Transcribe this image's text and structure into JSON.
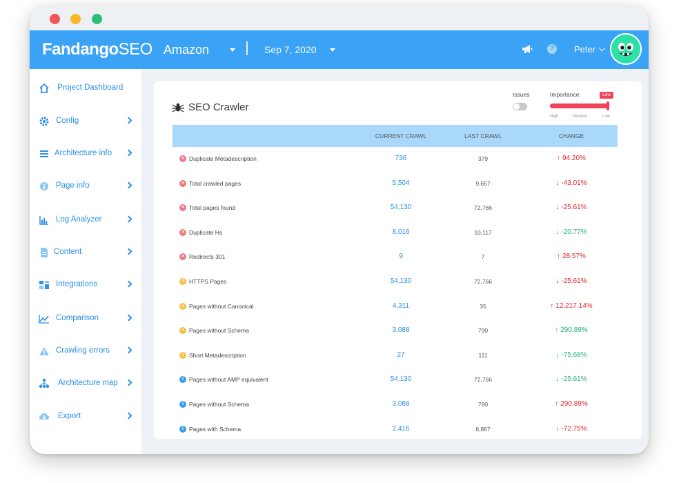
{
  "colors": {
    "accent": "#3aa3f5",
    "link": "#2b8fe8",
    "bad": "#e8232f",
    "good": "#22b573"
  },
  "header": {
    "logo_main": "Fandango",
    "logo_suffix": "SEO",
    "project": "Amazon",
    "date": "Sep 7, 2020",
    "user": "Peter",
    "help_label": "?"
  },
  "sidebar": {
    "items": [
      {
        "label": "Project Dashboard",
        "icon": "home-icon",
        "chevron": false
      },
      {
        "label": "Config",
        "icon": "gear-icon",
        "chevron": true
      },
      {
        "label": "Architecture info",
        "icon": "architecture-icon",
        "chevron": true
      },
      {
        "label": "Page info",
        "icon": "info-icon",
        "chevron": true
      },
      {
        "label": "Log Analyzer",
        "icon": "chart-icon",
        "chevron": true
      },
      {
        "label": "Content",
        "icon": "document-icon",
        "chevron": true
      },
      {
        "label": "Integrations",
        "icon": "grid-icon",
        "chevron": true
      },
      {
        "label": "Comparison",
        "icon": "line-chart-icon",
        "chevron": true
      },
      {
        "label": "Crawling errors",
        "icon": "warning-icon",
        "chevron": true
      },
      {
        "label": "Architecture map",
        "icon": "sitemap-icon",
        "chevron": true
      },
      {
        "label": "Export",
        "icon": "cloud-download-icon",
        "chevron": true
      }
    ]
  },
  "crawler": {
    "title": "SEO Crawler",
    "issues_label": "Issues",
    "issues_on": false,
    "importance_label": "Importance",
    "importance_badge": "Low",
    "importance_level": 1.0,
    "importance_ticks": [
      "High",
      "Medium",
      "Low"
    ],
    "columns": {
      "current": "CURRENT CRAWL",
      "last": "LAST CRAWL",
      "change": "CHANGE"
    },
    "rows": [
      {
        "severity": "error",
        "label": "Duplicate Metadescription",
        "current": "736",
        "last": "379",
        "change": "94.20%",
        "direction": "up",
        "good": false
      },
      {
        "severity": "error",
        "label": "Total crawled pages",
        "current": "5,504",
        "last": "9,657",
        "change": "-43.01%",
        "direction": "down",
        "good": false
      },
      {
        "severity": "error",
        "label": "Total pages found",
        "current": "54,130",
        "last": "72,766",
        "change": "-25.61%",
        "direction": "down",
        "good": false
      },
      {
        "severity": "error",
        "label": "Duplicate Hs",
        "current": "8,016",
        "last": "10,117",
        "change": "-20.77%",
        "direction": "down",
        "good": true
      },
      {
        "severity": "error",
        "label": "Redirects 301",
        "current": "9",
        "last": "7",
        "change": "28.57%",
        "direction": "up",
        "good": false
      },
      {
        "severity": "warning",
        "label": "HTTPS Pages",
        "current": "54,130",
        "last": "72,766",
        "change": "-25.61%",
        "direction": "down",
        "good": false
      },
      {
        "severity": "warning",
        "label": "Pages without Canonical",
        "current": "4,311",
        "last": "35",
        "change": "12,217.14%",
        "direction": "up",
        "good": false
      },
      {
        "severity": "warning",
        "label": "Pages without Schema",
        "current": "3,088",
        "last": "790",
        "change": "290.89%",
        "direction": "up",
        "good": true
      },
      {
        "severity": "warning",
        "label": "Short Metadescription",
        "current": "27",
        "last": "111",
        "change": "-75.68%",
        "direction": "down",
        "good": true
      },
      {
        "severity": "info",
        "label": "Pages without AMP equivalent",
        "current": "54,130",
        "last": "72,766",
        "change": "-25.61%",
        "direction": "down",
        "good": true
      },
      {
        "severity": "info",
        "label": "Pages without Schema",
        "current": "3,088",
        "last": "790",
        "change": "290.89%",
        "direction": "up",
        "good": false
      },
      {
        "severity": "info",
        "label": "Pages with Schema",
        "current": "2,416",
        "last": "8,867",
        "change": "-72.75%",
        "direction": "down",
        "good": false
      }
    ]
  }
}
